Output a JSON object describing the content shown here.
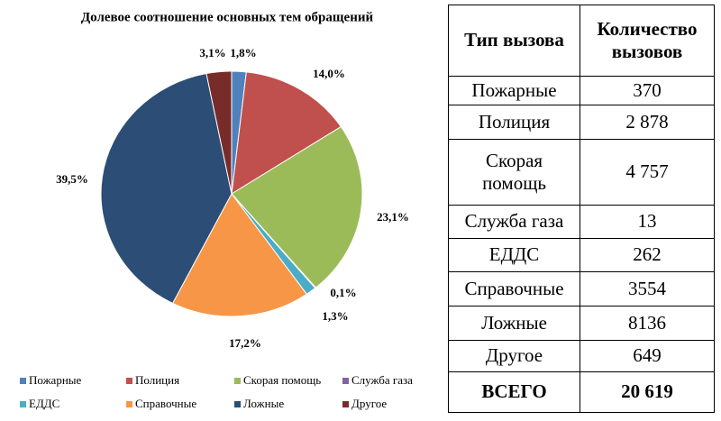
{
  "chart_data": {
    "type": "pie",
    "title": "Долевое соотношение основных тем обращений",
    "categories": [
      "Пожарные",
      "Полиция",
      "Скорая помощь",
      "Служба газа",
      "ЕДДС",
      "Справочные",
      "Ложные",
      "Другое"
    ],
    "values": [
      1.8,
      14.0,
      23.1,
      0.1,
      1.3,
      17.2,
      39.5,
      3.1
    ],
    "value_labels": [
      "1,8%",
      "14,0%",
      "23,1%",
      "0,1%",
      "1,3%",
      "17,2%",
      "39,5%",
      "3,1%"
    ],
    "colors": [
      "#4f81bd",
      "#c0504d",
      "#9bbb59",
      "#8064a2",
      "#4bacc6",
      "#f79646",
      "#2c4d75",
      "#772c2a"
    ],
    "legend": "bottom"
  },
  "table": {
    "header": [
      "Тип вызова",
      "Количество вызовов"
    ],
    "rows": [
      [
        "Пожарные",
        "370"
      ],
      [
        "Полиция",
        "2 878"
      ],
      [
        "Скорая помощь",
        "4 757"
      ],
      [
        "Служба газа",
        "13"
      ],
      [
        "ЕДДС",
        "262"
      ],
      [
        "Справочные",
        "3554"
      ],
      [
        "Ложные",
        "8136"
      ],
      [
        "Другое",
        "649"
      ]
    ],
    "total": [
      "ВСЕГО",
      "20 619"
    ]
  }
}
